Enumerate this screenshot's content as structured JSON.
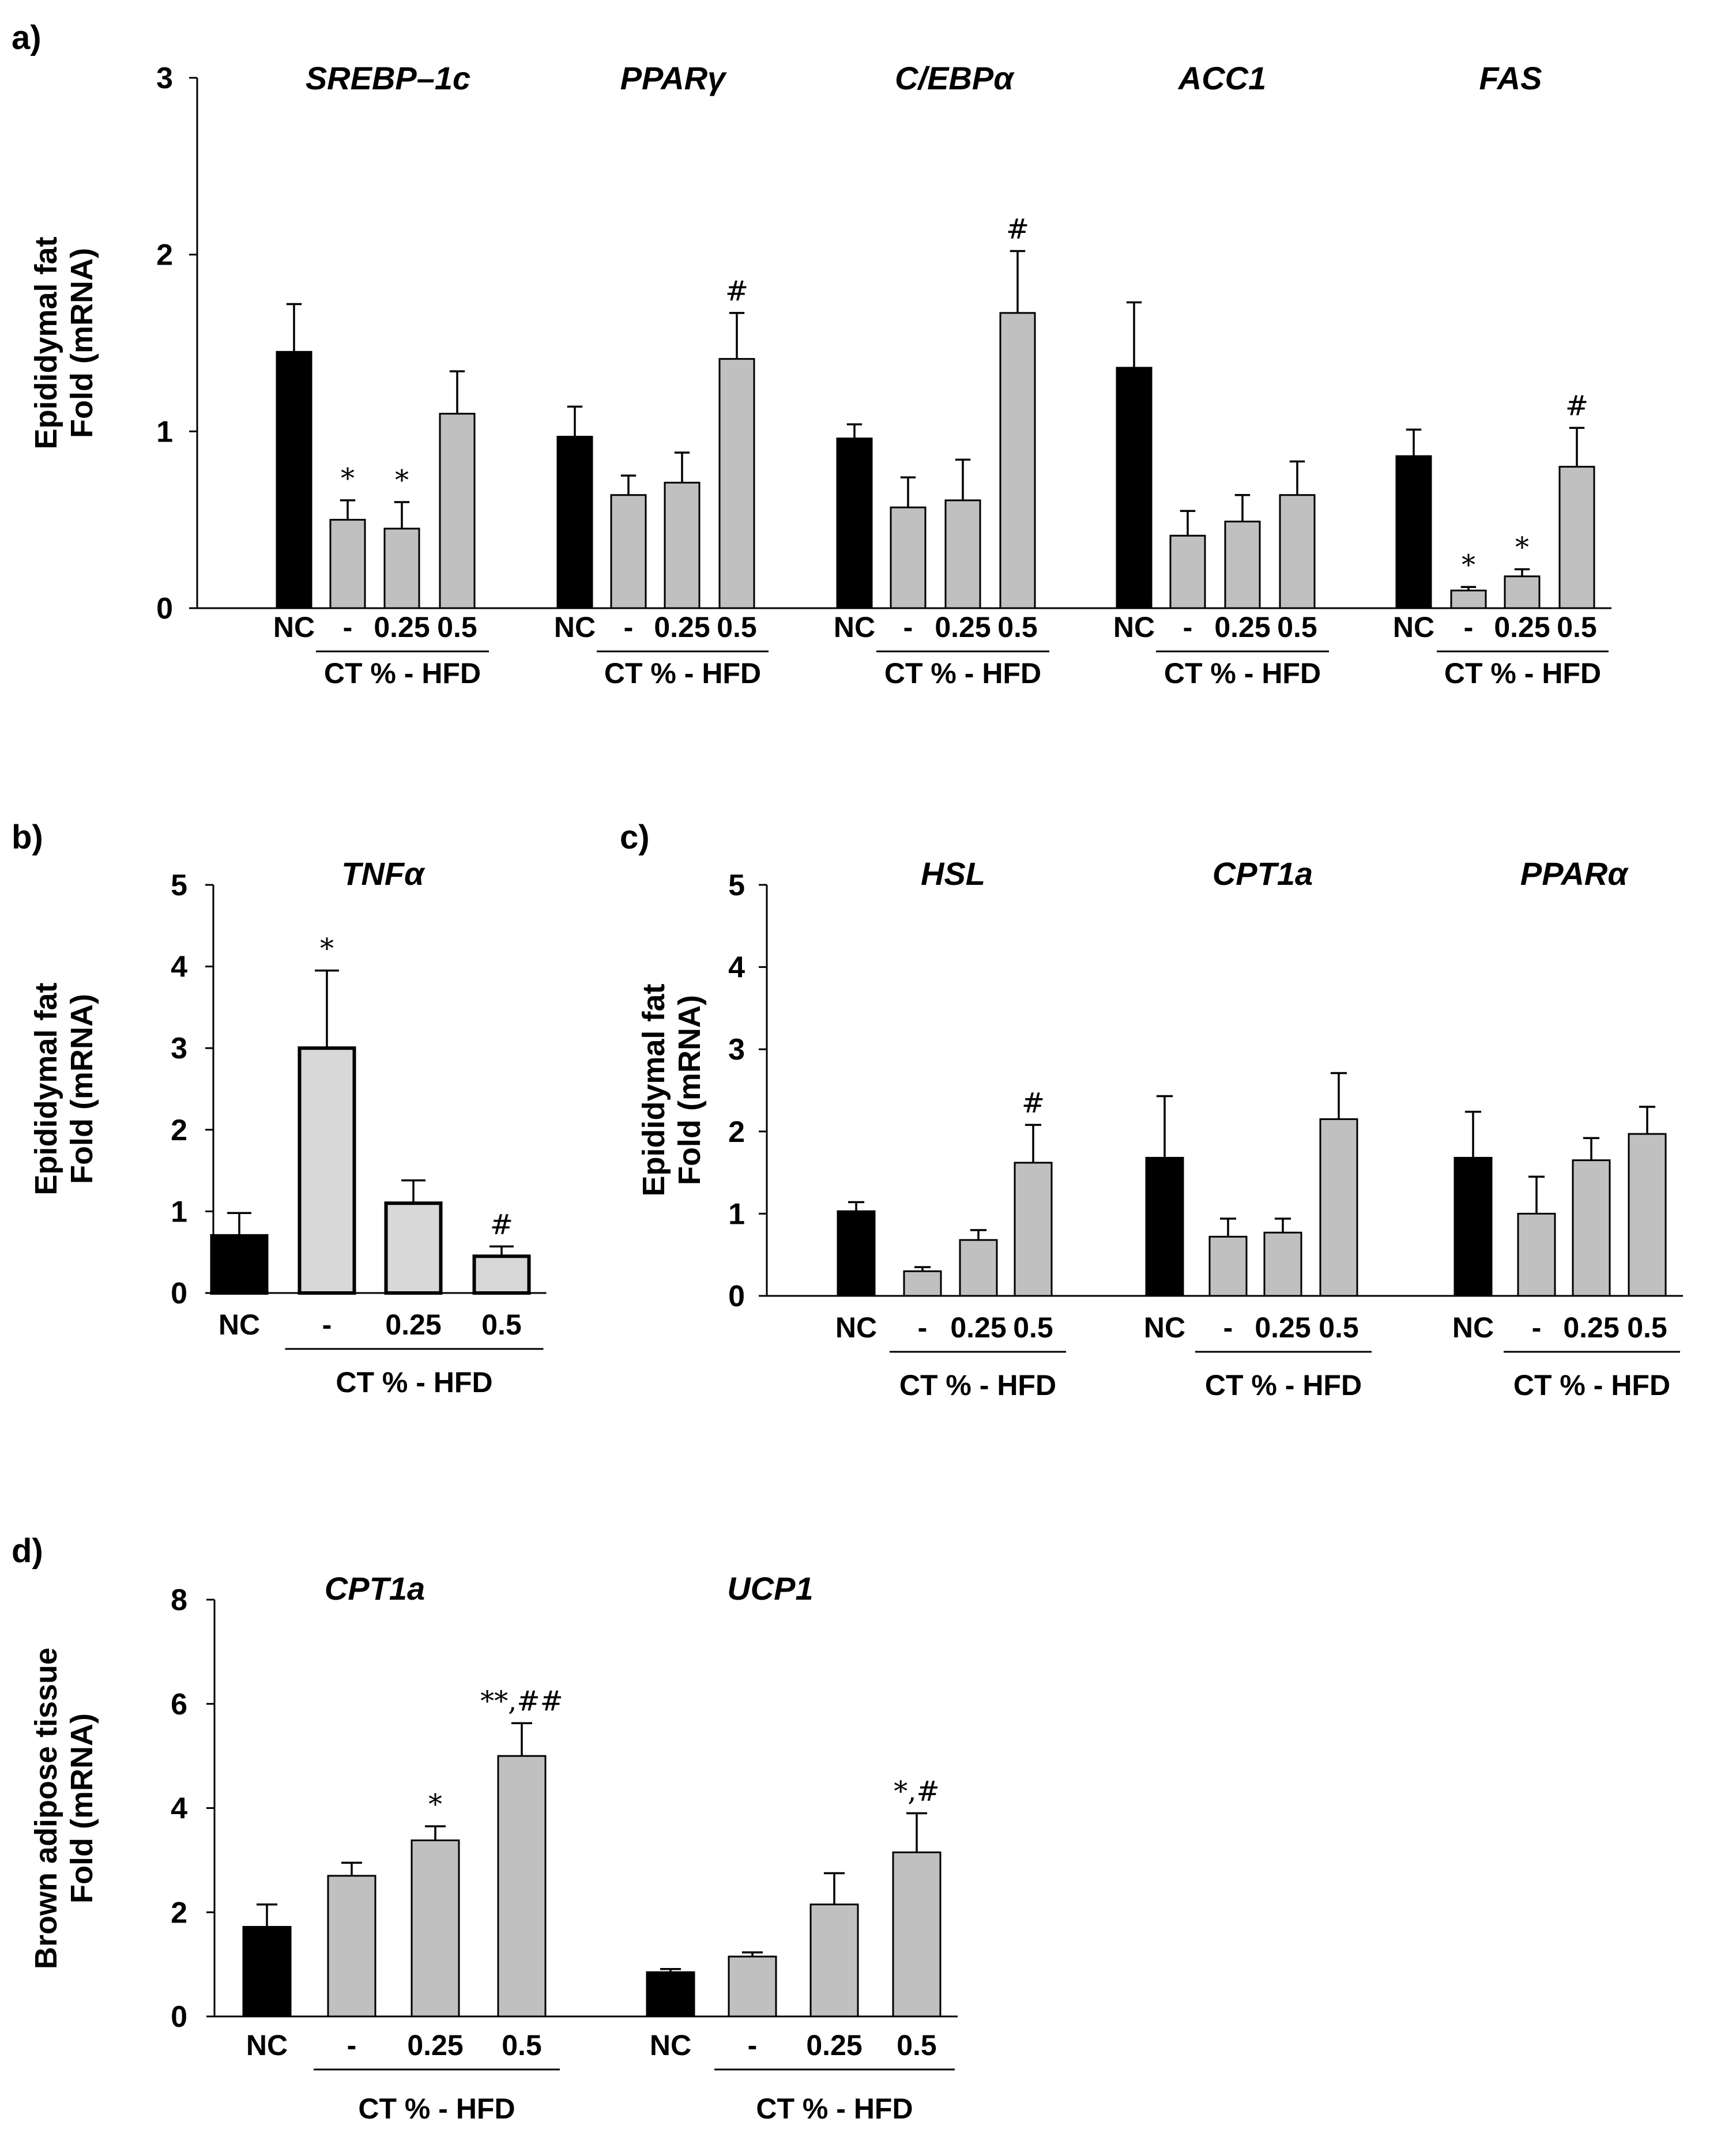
{
  "figure": {
    "background": "#ffffff"
  },
  "colors": {
    "nc_fill": "#000000",
    "hfd_fill": "#c0c0c0",
    "tnf_hfd_fill": "#d8d8d8",
    "stroke": "#000000"
  },
  "group_label": "CT % - HFD",
  "chart_data": [
    {
      "id": "a",
      "panel_label": "a)",
      "type": "bar",
      "ylabel": [
        "Epididymal fat",
        "Fold (mRNA)"
      ],
      "ylim": [
        0,
        3
      ],
      "yticks": [
        0,
        1,
        2,
        3
      ],
      "categories": [
        "NC",
        "-",
        "0.25",
        "0.5"
      ],
      "genes": [
        {
          "name": "SREBP–1c",
          "values": [
            1.45,
            0.5,
            0.45,
            1.1
          ],
          "errors": [
            0.27,
            0.11,
            0.15,
            0.24
          ],
          "sig": [
            "",
            "*",
            "*",
            ""
          ]
        },
        {
          "name": "PPARγ",
          "values": [
            0.97,
            0.64,
            0.71,
            1.41
          ],
          "errors": [
            0.17,
            0.11,
            0.17,
            0.26
          ],
          "sig": [
            "",
            "",
            "",
            "#"
          ]
        },
        {
          "name": "C/EBPα",
          "values": [
            0.96,
            0.57,
            0.61,
            1.67
          ],
          "errors": [
            0.08,
            0.17,
            0.23,
            0.35
          ],
          "sig": [
            "",
            "",
            "",
            "#"
          ]
        },
        {
          "name": "ACC1",
          "values": [
            1.36,
            0.41,
            0.49,
            0.64
          ],
          "errors": [
            0.37,
            0.14,
            0.15,
            0.19
          ],
          "sig": [
            "",
            "",
            "",
            ""
          ]
        },
        {
          "name": "FAS",
          "values": [
            0.86,
            0.1,
            0.18,
            0.8
          ],
          "errors": [
            0.15,
            0.02,
            0.04,
            0.22
          ],
          "sig": [
            "",
            "*",
            "*",
            "#"
          ]
        }
      ]
    },
    {
      "id": "b",
      "panel_label": "b)",
      "type": "bar",
      "ylabel": [
        "Epididymal fat",
        "Fold (mRNA)"
      ],
      "ylim": [
        0,
        5
      ],
      "yticks": [
        0,
        1,
        2,
        3,
        4,
        5
      ],
      "categories": [
        "NC",
        "-",
        "0.25",
        "0.5"
      ],
      "genes": [
        {
          "name": "TNFα",
          "values": [
            0.7,
            3.0,
            1.1,
            0.45
          ],
          "errors": [
            0.28,
            0.95,
            0.28,
            0.12
          ],
          "sig": [
            "",
            "*",
            "",
            "#"
          ]
        }
      ]
    },
    {
      "id": "c",
      "panel_label": "c)",
      "type": "bar",
      "ylabel": [
        "Epididymal fat",
        "Fold (mRNA)"
      ],
      "ylim": [
        0,
        5
      ],
      "yticks": [
        0,
        1,
        2,
        3,
        4,
        5
      ],
      "categories": [
        "NC",
        "-",
        "0.25",
        "0.5"
      ],
      "genes": [
        {
          "name": "HSL",
          "values": [
            1.03,
            0.3,
            0.68,
            1.62
          ],
          "errors": [
            0.11,
            0.05,
            0.12,
            0.46
          ],
          "sig": [
            "",
            "",
            "",
            "#"
          ]
        },
        {
          "name": "CPT1a",
          "values": [
            1.68,
            0.72,
            0.77,
            2.15
          ],
          "errors": [
            0.75,
            0.22,
            0.17,
            0.56
          ],
          "sig": [
            "",
            "",
            "",
            ""
          ]
        },
        {
          "name": "PPARα",
          "values": [
            1.68,
            1.0,
            1.65,
            1.97
          ],
          "errors": [
            0.56,
            0.45,
            0.27,
            0.33
          ],
          "sig": [
            "",
            "",
            "",
            ""
          ]
        }
      ]
    },
    {
      "id": "d",
      "panel_label": "d)",
      "type": "bar",
      "ylabel": [
        "Brown adipose tissue",
        "Fold (mRNA)"
      ],
      "ylim": [
        0,
        8
      ],
      "yticks": [
        0,
        2,
        4,
        6,
        8
      ],
      "categories": [
        "NC",
        "-",
        "0.25",
        "0.5"
      ],
      "genes": [
        {
          "name": "CPT1a",
          "values": [
            1.72,
            2.7,
            3.38,
            5.0
          ],
          "errors": [
            0.43,
            0.25,
            0.27,
            0.63
          ],
          "sig": [
            "",
            "",
            "*",
            "**,##"
          ]
        },
        {
          "name": "UCP1",
          "values": [
            0.85,
            1.15,
            2.15,
            3.15
          ],
          "errors": [
            0.06,
            0.08,
            0.6,
            0.75
          ],
          "sig": [
            "",
            "",
            "",
            "*,#"
          ]
        }
      ]
    }
  ]
}
